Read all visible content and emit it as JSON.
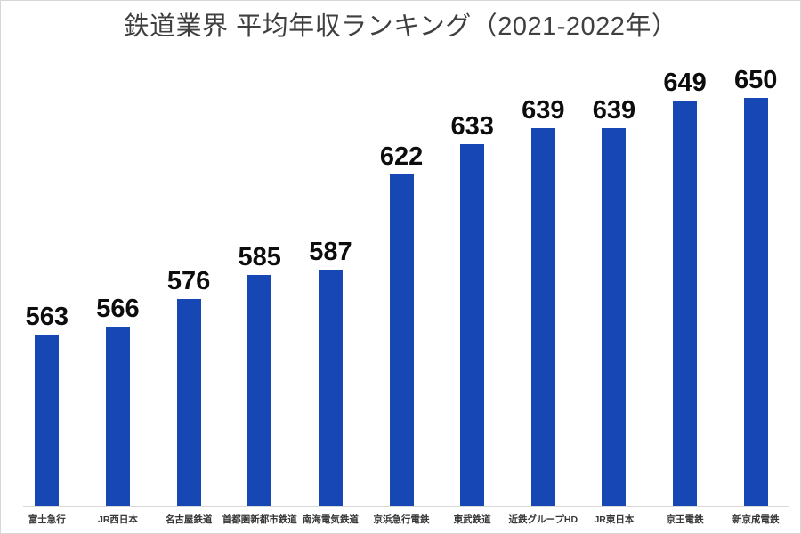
{
  "page": {
    "background": "#ffffff",
    "frame_border_color": "#d7d7da"
  },
  "chart_data": {
    "type": "bar",
    "title": "鉄道業界 平均年収ランキング（2021-2022年）",
    "categories": [
      "富士急行",
      "JR西日本",
      "名古屋鉄道",
      "首都圏新都市鉄道",
      "南海電気鉄道",
      "京浜急行電鉄",
      "東武鉄道",
      "近鉄グループHD",
      "JR東日本",
      "京王電鉄",
      "新京成電鉄"
    ],
    "values": [
      563,
      566,
      576,
      585,
      587,
      622,
      633,
      639,
      639,
      649,
      650
    ],
    "xlabel": "",
    "ylabel": "",
    "ylim": [
      500,
      660
    ],
    "grid": false,
    "legend": "none",
    "data_labels": true,
    "bar_color": "#1747b4",
    "value_label_color": "#0d0d0d",
    "category_label_color": "#363636",
    "title_color": "#3f3f3f",
    "axis_line_color": "#d9d9d9"
  }
}
